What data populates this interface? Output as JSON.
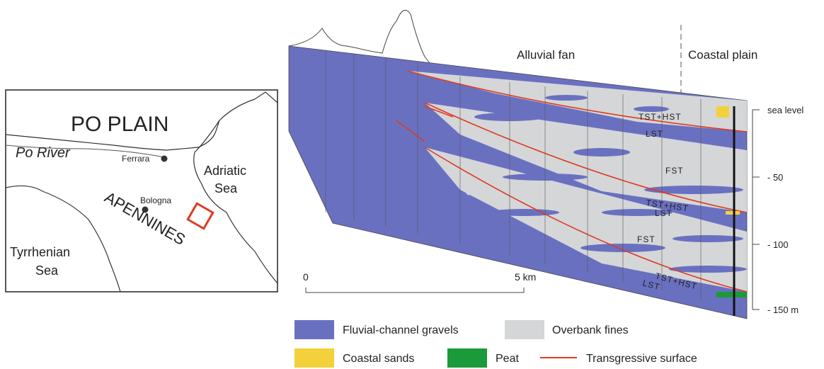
{
  "map": {
    "title": "PO PLAIN",
    "river": "Po River",
    "ferrara": "Ferrara",
    "bologna": "Bologna",
    "adriatic": [
      "Adriatic",
      "Sea"
    ],
    "apennines": "APENNINES",
    "tyrrhenian": [
      "Tyrrhenian",
      "Sea"
    ]
  },
  "section": {
    "zones": [
      "Alluvial fan",
      "Coastal plain"
    ],
    "units": [
      "TST+HST",
      "LST",
      "FST",
      "TST+HST",
      "LST",
      "FST",
      "TST+HST",
      "LST"
    ],
    "depth_labels": [
      "sea level",
      "- 50",
      "- 100",
      "- 150 m"
    ],
    "scale_bar": [
      "0",
      "5 km"
    ]
  },
  "legend": [
    "Fluvial-channel gravels",
    "Overbank fines",
    "Coastal sands",
    "Peat",
    "Transgressive surface"
  ]
}
